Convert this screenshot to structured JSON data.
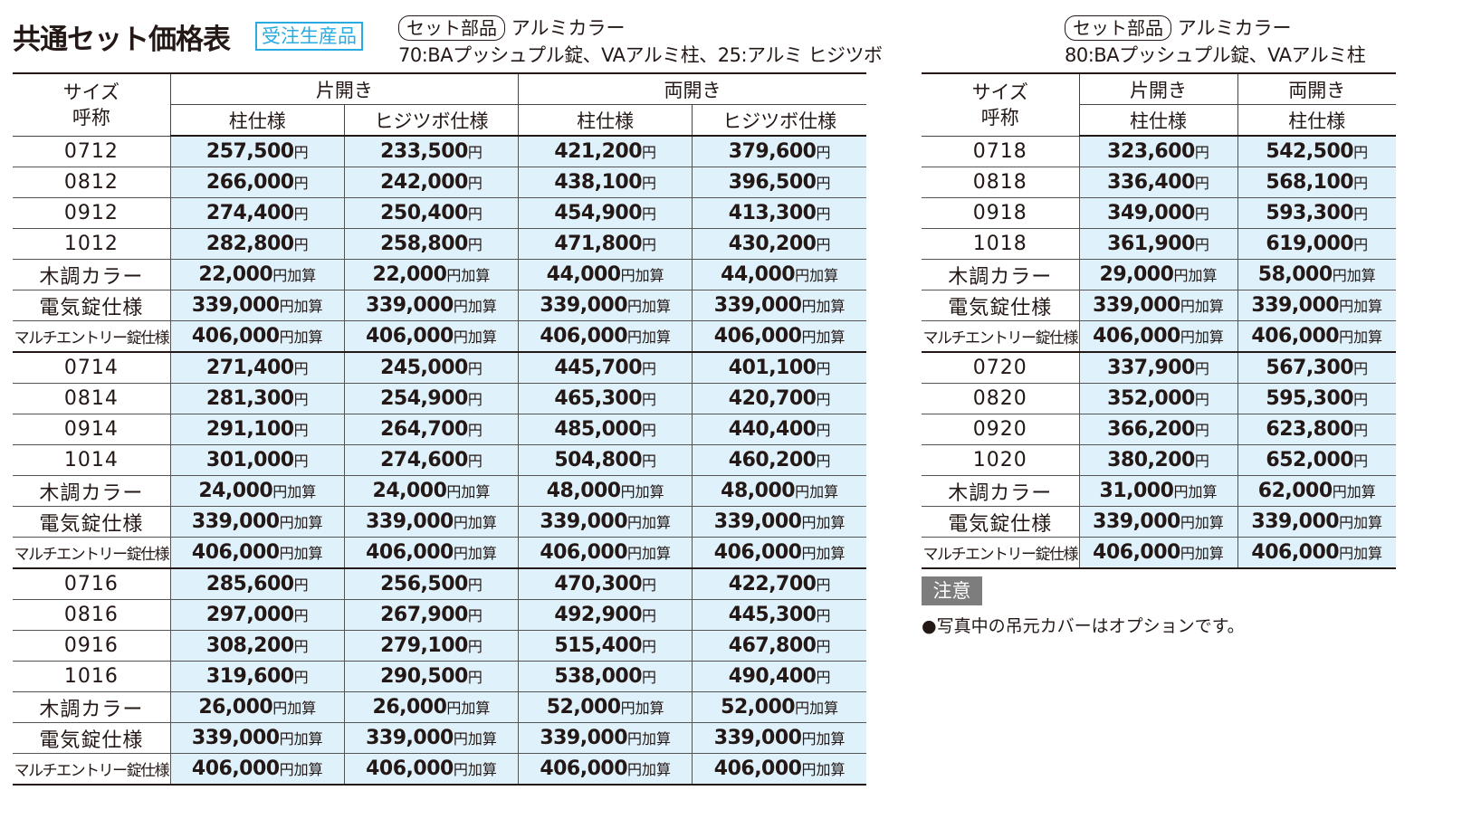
{
  "header": {
    "title": "共通セット価格表",
    "badge": "受注生産品"
  },
  "colors": {
    "accent": "#29abe2",
    "price_bg": "#dff1fb",
    "note_bg": "#7d7d7d"
  },
  "left_table": {
    "set_label": "セット部品",
    "set_color": "アルミカラー",
    "set_items": "70:BAプッシュプル錠、VAアルミ柱、25:アルミ ヒジツボ",
    "size_header": [
      "サイズ",
      "呼称"
    ],
    "groups": [
      "片開き",
      "両開き"
    ],
    "columns": [
      "柱仕様",
      "ヒジツボ仕様",
      "柱仕様",
      "ヒジツボ仕様"
    ],
    "rows": [
      {
        "label": "0712",
        "suffix": "円",
        "prices": [
          "257,500",
          "233,500",
          "421,200",
          "379,600"
        ]
      },
      {
        "label": "0812",
        "suffix": "円",
        "prices": [
          "266,000",
          "242,000",
          "438,100",
          "396,500"
        ]
      },
      {
        "label": "0912",
        "suffix": "円",
        "prices": [
          "274,400",
          "250,400",
          "454,900",
          "413,300"
        ]
      },
      {
        "label": "1012",
        "suffix": "円",
        "prices": [
          "282,800",
          "258,800",
          "471,800",
          "430,200"
        ]
      },
      {
        "label": "木調カラー",
        "suffix": "円加算",
        "prices": [
          "22,000",
          "22,000",
          "44,000",
          "44,000"
        ]
      },
      {
        "label": "電気錠仕様",
        "suffix": "円加算",
        "prices": [
          "339,000",
          "339,000",
          "339,000",
          "339,000"
        ]
      },
      {
        "label": "マルチエントリー錠仕様",
        "suffix": "円加算",
        "prices": [
          "406,000",
          "406,000",
          "406,000",
          "406,000"
        ]
      },
      {
        "label": "0714",
        "suffix": "円",
        "prices": [
          "271,400",
          "245,000",
          "445,700",
          "401,100"
        ]
      },
      {
        "label": "0814",
        "suffix": "円",
        "prices": [
          "281,300",
          "254,900",
          "465,300",
          "420,700"
        ]
      },
      {
        "label": "0914",
        "suffix": "円",
        "prices": [
          "291,100",
          "264,700",
          "485,000",
          "440,400"
        ]
      },
      {
        "label": "1014",
        "suffix": "円",
        "prices": [
          "301,000",
          "274,600",
          "504,800",
          "460,200"
        ]
      },
      {
        "label": "木調カラー",
        "suffix": "円加算",
        "prices": [
          "24,000",
          "24,000",
          "48,000",
          "48,000"
        ]
      },
      {
        "label": "電気錠仕様",
        "suffix": "円加算",
        "prices": [
          "339,000",
          "339,000",
          "339,000",
          "339,000"
        ]
      },
      {
        "label": "マルチエントリー錠仕様",
        "suffix": "円加算",
        "prices": [
          "406,000",
          "406,000",
          "406,000",
          "406,000"
        ]
      },
      {
        "label": "0716",
        "suffix": "円",
        "prices": [
          "285,600",
          "256,500",
          "470,300",
          "422,700"
        ]
      },
      {
        "label": "0816",
        "suffix": "円",
        "prices": [
          "297,000",
          "267,900",
          "492,900",
          "445,300"
        ]
      },
      {
        "label": "0916",
        "suffix": "円",
        "prices": [
          "308,200",
          "279,100",
          "515,400",
          "467,800"
        ]
      },
      {
        "label": "1016",
        "suffix": "円",
        "prices": [
          "319,600",
          "290,500",
          "538,000",
          "490,400"
        ]
      },
      {
        "label": "木調カラー",
        "suffix": "円加算",
        "prices": [
          "26,000",
          "26,000",
          "52,000",
          "52,000"
        ]
      },
      {
        "label": "電気錠仕様",
        "suffix": "円加算",
        "prices": [
          "339,000",
          "339,000",
          "339,000",
          "339,000"
        ]
      },
      {
        "label": "マルチエントリー錠仕様",
        "suffix": "円加算",
        "prices": [
          "406,000",
          "406,000",
          "406,000",
          "406,000"
        ]
      }
    ]
  },
  "right_table": {
    "set_label": "セット部品",
    "set_color": "アルミカラー",
    "set_items": "80:BAプッシュプル錠、VAアルミ柱",
    "size_header": [
      "サイズ",
      "呼称"
    ],
    "groups": [
      "片開き",
      "両開き"
    ],
    "columns": [
      "柱仕様",
      "柱仕様"
    ],
    "rows": [
      {
        "label": "0718",
        "suffix": "円",
        "prices": [
          "323,600",
          "542,500"
        ]
      },
      {
        "label": "0818",
        "suffix": "円",
        "prices": [
          "336,400",
          "568,100"
        ]
      },
      {
        "label": "0918",
        "suffix": "円",
        "prices": [
          "349,000",
          "593,300"
        ]
      },
      {
        "label": "1018",
        "suffix": "円",
        "prices": [
          "361,900",
          "619,000"
        ]
      },
      {
        "label": "木調カラー",
        "suffix": "円加算",
        "prices": [
          "29,000",
          "58,000"
        ]
      },
      {
        "label": "電気錠仕様",
        "suffix": "円加算",
        "prices": [
          "339,000",
          "339,000"
        ]
      },
      {
        "label": "マルチエントリー錠仕様",
        "suffix": "円加算",
        "prices": [
          "406,000",
          "406,000"
        ]
      },
      {
        "label": "0720",
        "suffix": "円",
        "prices": [
          "337,900",
          "567,300"
        ]
      },
      {
        "label": "0820",
        "suffix": "円",
        "prices": [
          "352,000",
          "595,300"
        ]
      },
      {
        "label": "0920",
        "suffix": "円",
        "prices": [
          "366,200",
          "623,800"
        ]
      },
      {
        "label": "1020",
        "suffix": "円",
        "prices": [
          "380,200",
          "652,000"
        ]
      },
      {
        "label": "木調カラー",
        "suffix": "円加算",
        "prices": [
          "31,000",
          "62,000"
        ]
      },
      {
        "label": "電気錠仕様",
        "suffix": "円加算",
        "prices": [
          "339,000",
          "339,000"
        ]
      },
      {
        "label": "マルチエントリー錠仕様",
        "suffix": "円加算",
        "prices": [
          "406,000",
          "406,000"
        ]
      }
    ]
  },
  "note": {
    "tag": "注意",
    "text": "●写真中の吊元カバーはオプションです。"
  }
}
